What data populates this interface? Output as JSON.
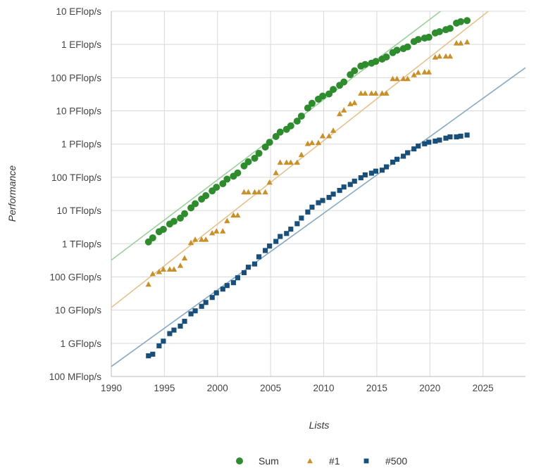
{
  "chart_data": {
    "type": "scatter",
    "title": "",
    "xlabel": "Lists",
    "ylabel": "Performance",
    "xlim": [
      1990,
      2029
    ],
    "ylim_gflops": [
      0.1,
      10000000000
    ],
    "y_scale": "log",
    "grid": true,
    "legend_position": "bottom",
    "x_ticks": [
      1990,
      1995,
      2000,
      2005,
      2010,
      2015,
      2020,
      2025
    ],
    "y_ticks": [
      {
        "value_gflops": 0.1,
        "label": "100 MFlop/s"
      },
      {
        "value_gflops": 1,
        "label": "1 GFlop/s"
      },
      {
        "value_gflops": 10,
        "label": "10 GFlop/s"
      },
      {
        "value_gflops": 100,
        "label": "100 GFlop/s"
      },
      {
        "value_gflops": 1000,
        "label": "1 TFlop/s"
      },
      {
        "value_gflops": 10000,
        "label": "10 TFlop/s"
      },
      {
        "value_gflops": 100000,
        "label": "100 TFlop/s"
      },
      {
        "value_gflops": 1000000,
        "label": "1 PFlop/s"
      },
      {
        "value_gflops": 10000000,
        "label": "10 PFlop/s"
      },
      {
        "value_gflops": 100000000,
        "label": "100 PFlop/s"
      },
      {
        "value_gflops": 1000000000,
        "label": "1 EFlop/s"
      },
      {
        "value_gflops": 10000000000,
        "label": "10 EFlop/s"
      }
    ],
    "x": [
      1993.5,
      1993.9,
      1994.5,
      1994.9,
      1995.5,
      1995.9,
      1996.5,
      1996.9,
      1997.5,
      1997.9,
      1998.5,
      1998.9,
      1999.5,
      1999.9,
      2000.5,
      2000.9,
      2001.5,
      2001.9,
      2002.5,
      2002.9,
      2003.5,
      2003.9,
      2004.5,
      2004.9,
      2005.5,
      2005.9,
      2006.5,
      2006.9,
      2007.5,
      2007.9,
      2008.5,
      2008.9,
      2009.5,
      2009.9,
      2010.5,
      2010.9,
      2011.5,
      2011.9,
      2012.5,
      2012.9,
      2013.5,
      2013.9,
      2014.5,
      2014.9,
      2015.5,
      2015.9,
      2016.5,
      2016.9,
      2017.5,
      2017.9,
      2018.5,
      2018.9,
      2019.5,
      2019.9,
      2020.5,
      2020.9,
      2021.5,
      2021.9,
      2022.5,
      2022.9,
      2023.5
    ],
    "series": [
      {
        "name": "Sum",
        "color": "#2e8b2e",
        "marker": "circle",
        "trend_color": "#9ccf9c",
        "trend": {
          "from": [
            1990,
            320
          ],
          "to": [
            2021,
            10000000000
          ]
        },
        "values_gflops": [
          1130,
          1500,
          2300,
          2700,
          3900,
          4700,
          5900,
          8000,
          12000,
          16000,
          22000,
          28000,
          39000,
          50000,
          64000,
          88000,
          108000,
          135000,
          220000,
          293000,
          375000,
          528000,
          813000,
          1130000,
          1690000,
          2300000,
          2790000,
          3540000,
          4920000,
          6970000,
          12200000,
          16900000,
          22600000,
          27900000,
          32400000,
          44200000,
          58900000,
          74200000,
          123000000,
          162000000,
          223000000,
          250000000,
          274000000,
          309000000,
          363000000,
          420000000,
          567000000,
          672000000,
          749000000,
          845000000,
          1220000000,
          1410000000,
          1560000000,
          1650000000,
          2220000000,
          2430000000,
          2790000000,
          3040000000,
          4400000000,
          4860000000,
          5240000000
        ]
      },
      {
        "name": "#1",
        "color": "#c8902a",
        "marker": "triangle",
        "trend_color": "#e6c08e",
        "trend": {
          "from": [
            1990,
            12
          ],
          "to": [
            2025.5,
            10000000000
          ]
        },
        "values_gflops": [
          59.7,
          124,
          143,
          170,
          170,
          170,
          220,
          368,
          1070,
          1340,
          1340,
          1340,
          2100,
          2400,
          2400,
          4900,
          7200,
          7200,
          35900,
          35900,
          35900,
          35900,
          35900,
          70700,
          137000,
          281000,
          281000,
          281000,
          281000,
          478000,
          1030000,
          1100000,
          1100000,
          1760000,
          1760000,
          2570000,
          8160000,
          10500000,
          16300000,
          17600000,
          33900000,
          33900000,
          33900000,
          33900000,
          33900000,
          33900000,
          93000000,
          93000000,
          93000000,
          93000000,
          122000000,
          143000000,
          148000000,
          148000000,
          415000000,
          442000000,
          442000000,
          442000000,
          1100000000,
          1100000000,
          1190000000
        ]
      },
      {
        "name": "#500",
        "color": "#1a4f7a",
        "marker": "square",
        "trend_color": "#86a8c2",
        "trend": {
          "from": [
            1990,
            0.2
          ],
          "to": [
            2029,
            200000000
          ]
        },
        "values_gflops": [
          0.42,
          0.47,
          0.84,
          1.16,
          1.96,
          2.5,
          3.3,
          4.6,
          7.7,
          9.5,
          13,
          17,
          24,
          33,
          43,
          55,
          67,
          94,
          134,
          196,
          245,
          403,
          624,
          851,
          1170,
          1650,
          2030,
          2740,
          4000,
          5900,
          9000,
          12600,
          17100,
          20000,
          24700,
          31100,
          40200,
          51000,
          60800,
          76500,
          96600,
          118000,
          133000,
          153000,
          164000,
          206000,
          286000,
          349000,
          432000,
          548000,
          716000,
          874000,
          1020000,
          1140000,
          1230000,
          1320000,
          1510000,
          1650000,
          1650000,
          1730000,
          1870000
        ]
      }
    ]
  }
}
